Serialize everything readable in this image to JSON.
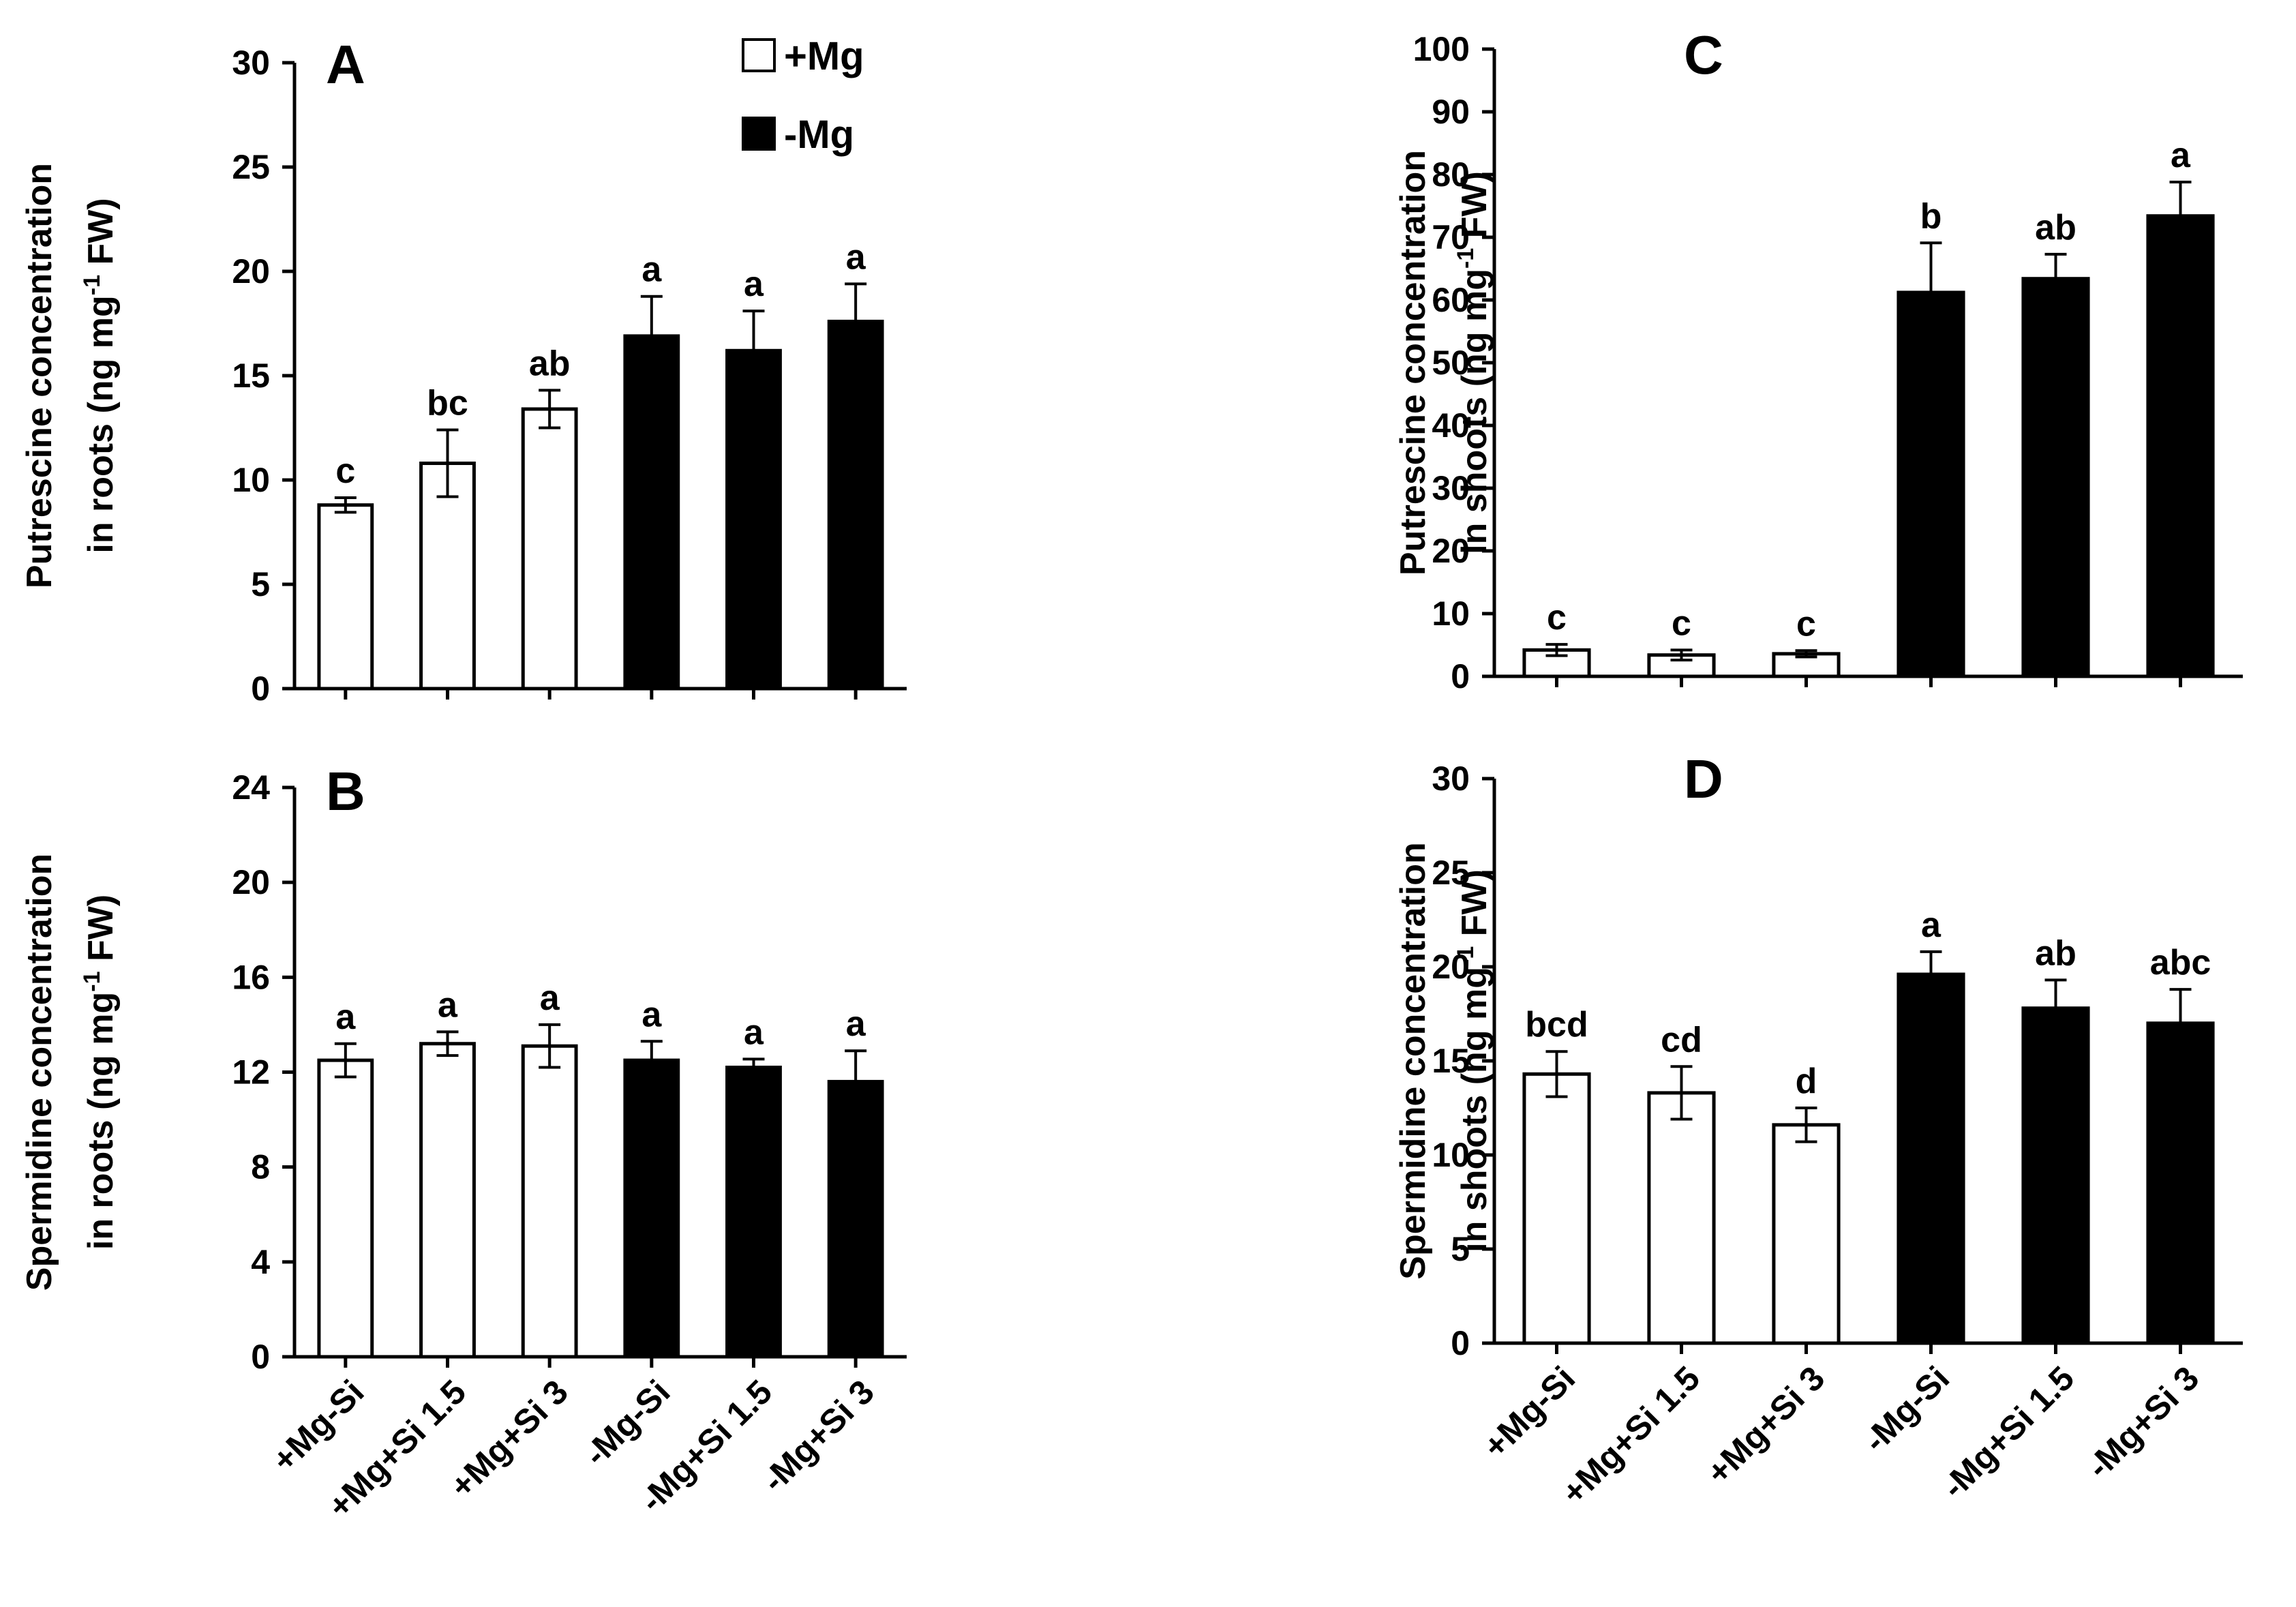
{
  "chart_data": [
    {
      "panel": "A",
      "type": "bar",
      "ylabel_line1": "Putrescine concentration",
      "ylabel_line2_pre": "in roots (ng mg",
      "ylabel_sup": "-1",
      "ylabel_line2_post": " FW)",
      "ylim": [
        0,
        30
      ],
      "yticks": [
        0,
        5,
        10,
        15,
        20,
        25,
        30
      ],
      "categories": [
        "+Mg-Si",
        "+Mg+Si 1.5",
        "+Mg+Si 3",
        "-Mg-Si",
        "-Mg+Si 1.5",
        "-Mg+Si 3"
      ],
      "values": [
        8.8,
        10.8,
        13.4,
        16.9,
        16.2,
        17.6
      ],
      "errors": [
        0.35,
        1.6,
        0.9,
        1.9,
        1.9,
        1.8
      ],
      "groups": [
        "+Mg",
        "+Mg",
        "+Mg",
        "-Mg",
        "-Mg",
        "-Mg"
      ],
      "letters": [
        "c",
        "bc",
        "ab",
        "a",
        "a",
        "a"
      ],
      "legend": [
        {
          "label": "+Mg",
          "color": "#ffffff"
        },
        {
          "label": "-Mg",
          "color": "#000000"
        }
      ],
      "show_categories": false
    },
    {
      "panel": "B",
      "type": "bar",
      "ylabel_line1": "Spermidine concentration",
      "ylabel_line2_pre": "in roots (ng mg",
      "ylabel_sup": "-1",
      "ylabel_line2_post": " FW)",
      "ylim": [
        0,
        24
      ],
      "yticks": [
        0,
        4,
        8,
        12,
        16,
        20,
        24
      ],
      "categories": [
        "+Mg-Si",
        "+Mg+Si 1.5",
        "+Mg+Si 3",
        "-Mg-Si",
        "-Mg+Si 1.5",
        "-Mg+Si 3"
      ],
      "values": [
        12.5,
        13.2,
        13.1,
        12.5,
        12.2,
        11.6
      ],
      "errors": [
        0.7,
        0.5,
        0.9,
        0.8,
        0.35,
        1.3
      ],
      "groups": [
        "+Mg",
        "+Mg",
        "+Mg",
        "-Mg",
        "-Mg",
        "-Mg"
      ],
      "letters": [
        "a",
        "a",
        "a",
        "a",
        "a",
        "a"
      ],
      "show_categories": true
    },
    {
      "panel": "C",
      "type": "bar",
      "ylabel_line1": "Putrescine concentration",
      "ylabel_line2_pre": "in shoots (ng mg",
      "ylabel_sup": "-1",
      "ylabel_line2_post": " FW)",
      "ylim": [
        0,
        100
      ],
      "yticks": [
        0,
        10,
        20,
        30,
        40,
        50,
        60,
        70,
        80,
        90,
        100
      ],
      "categories": [
        "+Mg-Si",
        "+Mg+Si 1.5",
        "+Mg+Si 3",
        "-Mg-Si",
        "-Mg+Si 1.5",
        "-Mg+Si 3"
      ],
      "values": [
        4.2,
        3.4,
        3.6,
        61.2,
        63.4,
        73.4
      ],
      "errors": [
        0.9,
        0.8,
        0.5,
        7.9,
        3.9,
        5.4
      ],
      "groups": [
        "+Mg",
        "+Mg",
        "+Mg",
        "-Mg",
        "-Mg",
        "-Mg"
      ],
      "letters": [
        "c",
        "c",
        "c",
        "b",
        "ab",
        "a"
      ],
      "show_categories": false
    },
    {
      "panel": "D",
      "type": "bar",
      "ylabel_line1": "Spermidine concentration",
      "ylabel_line2_pre": "in shoots (ng mg",
      "ylabel_sup": "-1",
      "ylabel_line2_post": " FW)",
      "ylim": [
        0,
        30
      ],
      "yticks": [
        0,
        5,
        10,
        15,
        20,
        25,
        30
      ],
      "categories": [
        "+Mg-Si",
        "+Mg+Si 1.5",
        "+Mg+Si 3",
        "-Mg-Si",
        "-Mg+Si 1.5",
        "-Mg+Si 3"
      ],
      "values": [
        14.3,
        13.3,
        11.6,
        19.6,
        17.8,
        17.0
      ],
      "errors": [
        1.2,
        1.4,
        0.9,
        1.2,
        1.5,
        1.8
      ],
      "groups": [
        "+Mg",
        "+Mg",
        "+Mg",
        "-Mg",
        "-Mg",
        "-Mg"
      ],
      "letters": [
        "bcd",
        "cd",
        "d",
        "a",
        "ab",
        "abc"
      ],
      "show_categories": true
    }
  ]
}
